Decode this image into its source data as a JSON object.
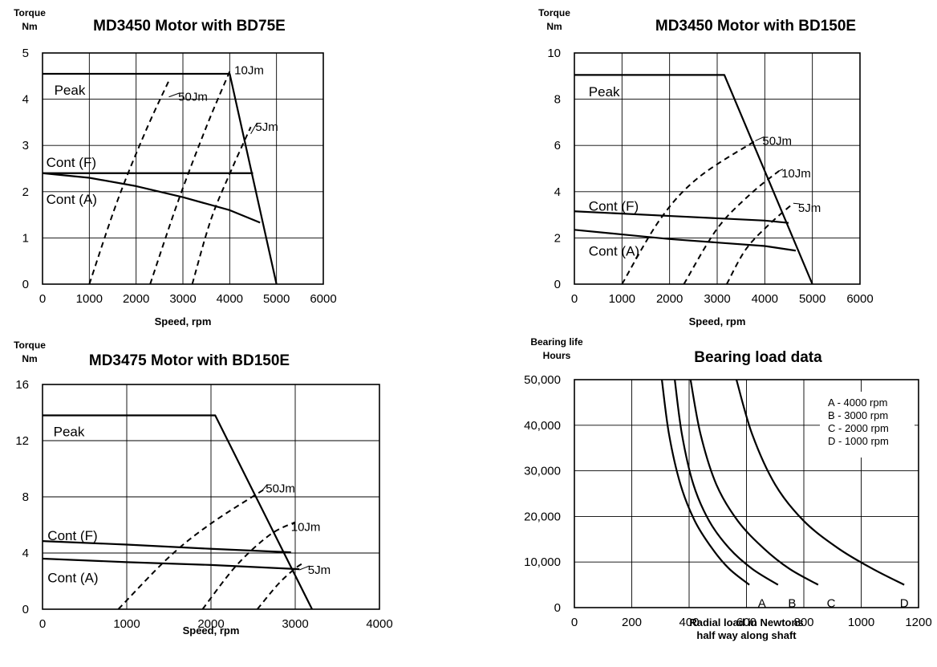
{
  "chart_data": [
    {
      "type": "line",
      "title": "MD3450 Motor with BD75E",
      "ylabel_line1": "Torque",
      "ylabel_line2": "Nm",
      "xlabel": "Speed, rpm",
      "xlim": [
        0,
        6000
      ],
      "ylim": [
        0,
        5
      ],
      "xticks": [
        "0",
        "1000",
        "2000",
        "3000",
        "4000",
        "5000",
        "6000"
      ],
      "yticks": [
        "0",
        "1",
        "2",
        "3",
        "4",
        "5"
      ],
      "grid": true,
      "series": [
        {
          "name": "Peak",
          "style": "solid",
          "x": [
            0,
            4000,
            5000
          ],
          "y": [
            4.55,
            4.55,
            0
          ]
        },
        {
          "name": "Cont (F)",
          "style": "solid",
          "x": [
            0,
            4500
          ],
          "y": [
            2.4,
            2.4
          ]
        },
        {
          "name": "Cont (A)",
          "style": "solid",
          "x": [
            0,
            1000,
            2000,
            3000,
            4000,
            4650
          ],
          "y": [
            2.4,
            2.3,
            2.12,
            1.88,
            1.6,
            1.33
          ]
        },
        {
          "name": "50Jm",
          "style": "dashed",
          "x": [
            1000,
            1600,
            2200,
            2700
          ],
          "y": [
            0,
            1.8,
            3.3,
            4.4
          ]
        },
        {
          "name": "10Jm",
          "style": "dashed",
          "x": [
            2300,
            2900,
            3500,
            4000
          ],
          "y": [
            0,
            1.8,
            3.4,
            4.6
          ]
        },
        {
          "name": "5Jm",
          "style": "dashed",
          "x": [
            3200,
            3600,
            4050,
            4450
          ],
          "y": [
            0,
            1.4,
            2.5,
            3.4
          ]
        }
      ],
      "annotations": [
        {
          "text": "Peak",
          "x": 250,
          "y": 4.18
        },
        {
          "text": "Cont (F)",
          "x": 80,
          "y": 2.62
        },
        {
          "text": "Cont (A)",
          "x": 80,
          "y": 1.82
        },
        {
          "text": "50Jm",
          "x": 2900,
          "y": 4.05,
          "ptr": [
            2700,
            4.05
          ]
        },
        {
          "text": "10Jm",
          "x": 4100,
          "y": 4.63
        },
        {
          "text": "5Jm",
          "x": 4550,
          "y": 3.4,
          "ptr": [
            4450,
            3.25
          ]
        }
      ]
    },
    {
      "type": "line",
      "title": "MD3450 Motor with BD150E",
      "ylabel_line1": "Torque",
      "ylabel_line2": "Nm",
      "xlabel": "Speed, rpm",
      "xlim": [
        0,
        6000
      ],
      "ylim": [
        0,
        10
      ],
      "xticks": [
        "0",
        "1000",
        "2000",
        "3000",
        "4000",
        "5000",
        "6000"
      ],
      "yticks": [
        "0",
        "2",
        "4",
        "6",
        "8",
        "10"
      ],
      "grid": true,
      "series": [
        {
          "name": "Peak",
          "style": "solid",
          "x": [
            0,
            3150,
            5000
          ],
          "y": [
            9.05,
            9.05,
            0
          ]
        },
        {
          "name": "Cont (F)",
          "style": "solid",
          "x": [
            0,
            1000,
            2000,
            3000,
            4000,
            4500
          ],
          "y": [
            3.15,
            3.05,
            2.95,
            2.85,
            2.75,
            2.65
          ]
        },
        {
          "name": "Cont (A)",
          "style": "solid",
          "x": [
            0,
            1000,
            2000,
            3000,
            4000,
            4650
          ],
          "y": [
            2.35,
            2.15,
            1.95,
            1.8,
            1.65,
            1.45
          ]
        },
        {
          "name": "50Jm",
          "style": "dashed",
          "x": [
            1000,
            1800,
            2600,
            3800
          ],
          "y": [
            0,
            2.8,
            4.6,
            6.2
          ]
        },
        {
          "name": "10Jm",
          "style": "dashed",
          "x": [
            2300,
            3000,
            3700,
            4300
          ],
          "y": [
            0,
            2.4,
            3.9,
            4.9
          ]
        },
        {
          "name": "5Jm",
          "style": "dashed",
          "x": [
            3200,
            3600,
            4100,
            4600
          ],
          "y": [
            0,
            1.5,
            2.6,
            3.5
          ]
        }
      ],
      "annotations": [
        {
          "text": "Peak",
          "x": 300,
          "y": 8.3
        },
        {
          "text": "Cont (F)",
          "x": 300,
          "y": 3.35
        },
        {
          "text": "Cont (A)",
          "x": 300,
          "y": 1.4
        },
        {
          "text": "50Jm",
          "x": 3950,
          "y": 6.2,
          "ptr": [
            3800,
            6.2
          ]
        },
        {
          "text": "10Jm",
          "x": 4350,
          "y": 4.8,
          "ptr": [
            4300,
            4.9
          ]
        },
        {
          "text": "5Jm",
          "x": 4700,
          "y": 3.3,
          "ptr": [
            4600,
            3.5
          ]
        }
      ]
    },
    {
      "type": "line",
      "title": "MD3475 Motor with BD150E",
      "ylabel_line1": "Torque",
      "ylabel_line2": "Nm",
      "xlabel": "Speed, rpm",
      "xlim": [
        0,
        4000
      ],
      "ylim": [
        0,
        16
      ],
      "xticks": [
        "0",
        "1000",
        "2000",
        "3000",
        "4000"
      ],
      "yticks": [
        "0",
        "4",
        "8",
        "12",
        "16"
      ],
      "grid": true,
      "series": [
        {
          "name": "Peak",
          "style": "solid",
          "x": [
            0,
            2050,
            3200
          ],
          "y": [
            13.8,
            13.8,
            0
          ]
        },
        {
          "name": "Cont (F)",
          "style": "solid",
          "x": [
            0,
            1000,
            2000,
            2950
          ],
          "y": [
            4.85,
            4.6,
            4.3,
            4.05
          ]
        },
        {
          "name": "Cont (A)",
          "style": "solid",
          "x": [
            0,
            1000,
            2000,
            3050
          ],
          "y": [
            3.6,
            3.35,
            3.15,
            2.85
          ]
        },
        {
          "name": "50Jm",
          "style": "dashed",
          "x": [
            900,
            1500,
            2000,
            2650
          ],
          "y": [
            0,
            3.7,
            6.1,
            8.6
          ]
        },
        {
          "name": "10Jm",
          "style": "dashed",
          "x": [
            1900,
            2300,
            2700,
            3000
          ],
          "y": [
            0,
            3.1,
            5.3,
            6.2
          ]
        },
        {
          "name": "5Jm",
          "style": "dashed",
          "x": [
            2550,
            2800,
            3000,
            3100
          ],
          "y": [
            0,
            1.8,
            2.9,
            3.3
          ]
        }
      ],
      "annotations": [
        {
          "text": "Peak",
          "x": 130,
          "y": 12.6
        },
        {
          "text": "Cont (F)",
          "x": 60,
          "y": 5.2
        },
        {
          "text": "Cont (A)",
          "x": 60,
          "y": 2.2
        },
        {
          "text": "50Jm",
          "x": 2650,
          "y": 8.6,
          "ptr": [
            2600,
            8.4
          ]
        },
        {
          "text": "10Jm",
          "x": 2950,
          "y": 5.85
        },
        {
          "text": "5Jm",
          "x": 3150,
          "y": 2.8,
          "ptr": [
            3050,
            2.8
          ]
        }
      ]
    },
    {
      "type": "line",
      "title": "Bearing load data",
      "ylabel_line1": "Bearing life",
      "ylabel_line2": "Hours",
      "xlabel_line1": "Radial load in Newtons",
      "xlabel_line2": "half way along shaft",
      "xlim": [
        0,
        1200
      ],
      "ylim": [
        0,
        50000
      ],
      "xticks": [
        "0",
        "200",
        "400",
        "600",
        "800",
        "1000",
        "1200"
      ],
      "yticks": [
        "0",
        "10,000",
        "20,000",
        "30,000",
        "40,000",
        "50,000"
      ],
      "grid": true,
      "series": [
        {
          "name": "A",
          "style": "solid",
          "x": [
            305,
            330,
            370,
            420,
            480,
            540,
            610
          ],
          "y": [
            50000,
            38000,
            27000,
            19000,
            13000,
            8500,
            5000
          ]
        },
        {
          "name": "B",
          "style": "solid",
          "x": [
            350,
            375,
            415,
            470,
            540,
            620,
            710
          ],
          "y": [
            50000,
            38000,
            27000,
            19000,
            13000,
            8500,
            5000
          ]
        },
        {
          "name": "C",
          "style": "solid",
          "x": [
            405,
            440,
            495,
            570,
            660,
            750,
            850
          ],
          "y": [
            50000,
            38000,
            27000,
            19000,
            13000,
            8500,
            5000
          ]
        },
        {
          "name": "D",
          "style": "solid",
          "x": [
            565,
            620,
            700,
            800,
            920,
            1040,
            1150
          ],
          "y": [
            50000,
            38000,
            27000,
            19000,
            13000,
            8500,
            5000
          ]
        }
      ],
      "annotations": [
        {
          "text": "A",
          "x": 640,
          "y": 1000
        },
        {
          "text": "B",
          "x": 745,
          "y": 1000
        },
        {
          "text": "C",
          "x": 880,
          "y": 1000
        },
        {
          "text": "D",
          "x": 1135,
          "y": 1000
        }
      ],
      "legend_box": [
        "A - 4000 rpm",
        "B - 3000 rpm",
        "C - 2000 rpm",
        "D - 1000 rpm"
      ],
      "legend_position": "top-right"
    }
  ]
}
